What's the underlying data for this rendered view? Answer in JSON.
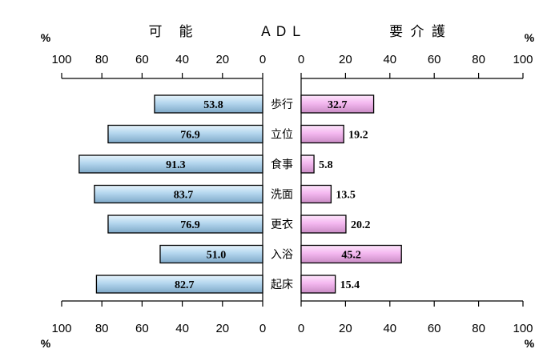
{
  "chart_data": {
    "type": "bar",
    "orientation": "horizontal-butterfly",
    "headings": {
      "left": "可　能",
      "center": "ＡＤＬ",
      "right": "要 介 護"
    },
    "unit": "%",
    "categories": [
      "歩行",
      "立位",
      "食事",
      "洗面",
      "更衣",
      "入浴",
      "起床"
    ],
    "series": [
      {
        "name": "",
        "side": "left",
        "values": [
          53.8,
          76.9,
          91.3,
          83.7,
          76.9,
          51.0,
          82.7
        ],
        "labels": [
          "53.8",
          "76.9",
          "91.3",
          "83.7",
          "76.9",
          "51.0",
          "82.7"
        ]
      },
      {
        "name": "",
        "side": "right",
        "values": [
          32.7,
          19.2,
          5.8,
          13.5,
          20.2,
          45.2,
          15.4
        ],
        "labels": [
          "32.7",
          "19.2",
          "5.8",
          "13.5",
          "20.2",
          "45.2",
          "15.4"
        ]
      }
    ],
    "left_ticks": [
      "100",
      "80",
      "60",
      "40",
      "20",
      "0"
    ],
    "right_ticks": [
      "0",
      "20",
      "40",
      "60",
      "80",
      "100"
    ],
    "xlim": [
      0,
      100
    ],
    "grid": false,
    "colors": {
      "left_bar": "#b4d6ee",
      "right_bar": "#f4b8f0",
      "outline": "#000000"
    }
  }
}
